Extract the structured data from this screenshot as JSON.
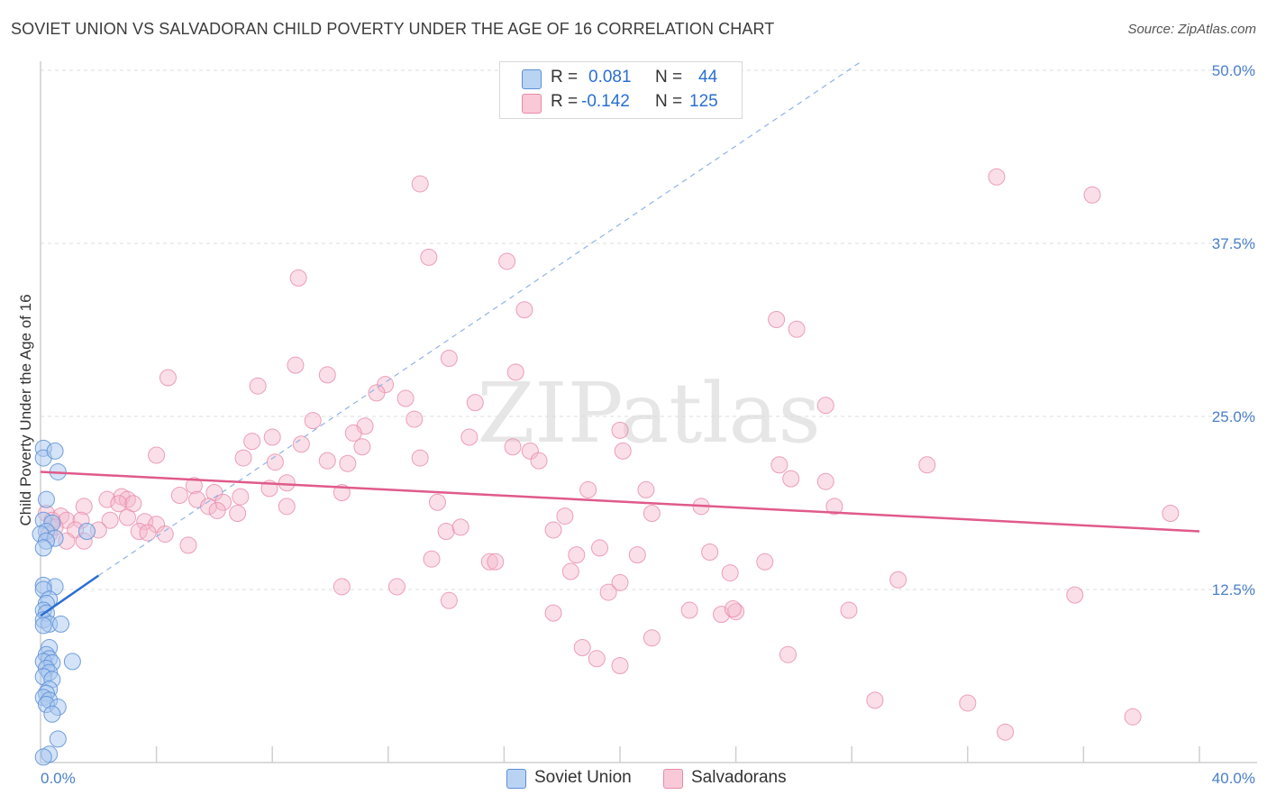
{
  "header": {
    "title": "SOVIET UNION VS SALVADORAN CHILD POVERTY UNDER THE AGE OF 16 CORRELATION CHART",
    "source": "Source: ZipAtlas.com"
  },
  "watermark": "ZIPatlas",
  "legend_top": {
    "rows": [
      {
        "r_label": "R =",
        "r_value": "0.081",
        "n_label": "N =",
        "n_value": "44"
      },
      {
        "r_label": "R =",
        "r_value": "-0.142",
        "n_label": "N =",
        "n_value": "125"
      }
    ]
  },
  "legend_bottom": {
    "items": [
      "Soviet Union",
      "Salvadorans"
    ]
  },
  "colors": {
    "soviet_fill": "#a9c8f0",
    "soviet_stroke": "#5b8fd6",
    "soviet_line": "#2a6fd1",
    "salv_fill": "#f5b8cc",
    "salv_stroke": "#e88aa8",
    "salv_line": "#e05a8a",
    "grid": "#dcdcdc",
    "axis_text": "#4a7fc9"
  },
  "chart_data": {
    "type": "scatter",
    "title": "SOVIET UNION VS SALVADORAN CHILD POVERTY UNDER THE AGE OF 16 CORRELATION CHART",
    "xlabel": "",
    "ylabel": "Child Poverty Under the Age of 16",
    "xlim": [
      0,
      40
    ],
    "ylim": [
      0,
      50
    ],
    "x_tick_labels": [
      "0.0%",
      "40.0%"
    ],
    "y_ticks": [
      12.5,
      25.0,
      37.5,
      50.0
    ],
    "y_tick_labels": [
      "12.5%",
      "25.0%",
      "37.5%",
      "50.0%"
    ],
    "grid": true,
    "legend_position": "top-center",
    "series": [
      {
        "name": "Soviet Union",
        "R": 0.081,
        "N": 44,
        "trend": {
          "x": [
            0.0,
            2.0
          ],
          "y": [
            10.6,
            13.5
          ]
        },
        "trend_extended": {
          "x": [
            2.0,
            28.3
          ],
          "y": [
            13.5,
            50.6
          ]
        },
        "points": [
          [
            0.1,
            22.7
          ],
          [
            0.1,
            22.0
          ],
          [
            0.5,
            22.5
          ],
          [
            0.6,
            21.0
          ],
          [
            0.2,
            19.0
          ],
          [
            0.1,
            17.5
          ],
          [
            0.4,
            17.3
          ],
          [
            0.2,
            16.7
          ],
          [
            0.0,
            16.5
          ],
          [
            0.5,
            16.2
          ],
          [
            0.2,
            16.0
          ],
          [
            0.1,
            15.5
          ],
          [
            1.6,
            16.7
          ],
          [
            0.1,
            12.8
          ],
          [
            0.5,
            12.7
          ],
          [
            0.1,
            12.5
          ],
          [
            0.3,
            11.8
          ],
          [
            0.2,
            11.5
          ],
          [
            0.1,
            11.0
          ],
          [
            0.2,
            10.8
          ],
          [
            0.1,
            10.3
          ],
          [
            0.3,
            10.0
          ],
          [
            0.1,
            9.9
          ],
          [
            0.7,
            10.0
          ],
          [
            0.3,
            8.3
          ],
          [
            0.2,
            7.8
          ],
          [
            0.3,
            7.5
          ],
          [
            0.1,
            7.3
          ],
          [
            0.4,
            7.2
          ],
          [
            1.1,
            7.3
          ],
          [
            0.2,
            6.8
          ],
          [
            0.3,
            6.5
          ],
          [
            0.1,
            6.2
          ],
          [
            0.4,
            6.0
          ],
          [
            0.3,
            5.3
          ],
          [
            0.2,
            5.0
          ],
          [
            0.1,
            4.7
          ],
          [
            0.3,
            4.5
          ],
          [
            0.2,
            4.2
          ],
          [
            0.6,
            4.0
          ],
          [
            0.4,
            3.5
          ],
          [
            0.6,
            1.7
          ],
          [
            0.3,
            0.6
          ],
          [
            0.1,
            0.4
          ]
        ]
      },
      {
        "name": "Salvadorans",
        "R": -0.142,
        "N": 125,
        "trend": {
          "x": [
            0.0,
            40.0
          ],
          "y": [
            21.0,
            16.7
          ]
        },
        "points": [
          [
            13.1,
            41.8
          ],
          [
            33.0,
            42.3
          ],
          [
            36.3,
            41.0
          ],
          [
            13.4,
            36.5
          ],
          [
            16.1,
            36.2
          ],
          [
            8.9,
            35.0
          ],
          [
            16.7,
            32.7
          ],
          [
            25.4,
            32.0
          ],
          [
            26.1,
            31.3
          ],
          [
            14.1,
            29.2
          ],
          [
            8.8,
            28.7
          ],
          [
            16.4,
            28.2
          ],
          [
            9.9,
            28.0
          ],
          [
            4.4,
            27.8
          ],
          [
            7.5,
            27.2
          ],
          [
            11.9,
            27.3
          ],
          [
            11.6,
            26.7
          ],
          [
            12.6,
            26.3
          ],
          [
            15.0,
            26.0
          ],
          [
            27.1,
            25.8
          ],
          [
            9.4,
            24.7
          ],
          [
            12.9,
            24.8
          ],
          [
            11.2,
            24.3
          ],
          [
            20.0,
            24.0
          ],
          [
            10.8,
            23.8
          ],
          [
            8.0,
            23.5
          ],
          [
            9.0,
            23.0
          ],
          [
            14.8,
            23.5
          ],
          [
            7.3,
            23.2
          ],
          [
            11.1,
            22.8
          ],
          [
            16.3,
            22.8
          ],
          [
            16.9,
            22.5
          ],
          [
            20.1,
            22.5
          ],
          [
            4.0,
            22.2
          ],
          [
            7.0,
            22.0
          ],
          [
            9.9,
            21.8
          ],
          [
            8.1,
            21.7
          ],
          [
            10.6,
            21.6
          ],
          [
            13.1,
            22.0
          ],
          [
            17.2,
            21.8
          ],
          [
            30.6,
            21.5
          ],
          [
            25.5,
            21.5
          ],
          [
            25.9,
            20.5
          ],
          [
            27.1,
            20.3
          ],
          [
            8.5,
            20.2
          ],
          [
            5.3,
            20.0
          ],
          [
            7.9,
            19.8
          ],
          [
            6.0,
            19.5
          ],
          [
            10.4,
            19.5
          ],
          [
            18.9,
            19.7
          ],
          [
            20.9,
            19.7
          ],
          [
            4.8,
            19.3
          ],
          [
            5.4,
            19.0
          ],
          [
            6.3,
            18.8
          ],
          [
            6.9,
            19.2
          ],
          [
            2.3,
            19.0
          ],
          [
            2.8,
            19.2
          ],
          [
            3.0,
            19.0
          ],
          [
            13.7,
            18.8
          ],
          [
            8.5,
            18.5
          ],
          [
            1.5,
            18.5
          ],
          [
            2.7,
            18.7
          ],
          [
            3.2,
            18.7
          ],
          [
            5.8,
            18.5
          ],
          [
            6.1,
            18.2
          ],
          [
            6.8,
            18.0
          ],
          [
            21.1,
            18.0
          ],
          [
            22.8,
            18.5
          ],
          [
            27.4,
            18.5
          ],
          [
            39.0,
            18.0
          ],
          [
            18.1,
            17.8
          ],
          [
            0.2,
            18.0
          ],
          [
            0.7,
            17.8
          ],
          [
            0.4,
            17.5
          ],
          [
            0.9,
            17.5
          ],
          [
            1.4,
            17.5
          ],
          [
            2.4,
            17.5
          ],
          [
            3.0,
            17.7
          ],
          [
            3.6,
            17.4
          ],
          [
            4.0,
            17.2
          ],
          [
            0.5,
            17.0
          ],
          [
            1.2,
            16.8
          ],
          [
            2.0,
            16.8
          ],
          [
            0.3,
            16.5
          ],
          [
            3.4,
            16.7
          ],
          [
            3.7,
            16.6
          ],
          [
            4.3,
            16.5
          ],
          [
            14.0,
            16.7
          ],
          [
            14.5,
            17.0
          ],
          [
            17.7,
            16.8
          ],
          [
            0.9,
            16.0
          ],
          [
            1.5,
            16.0
          ],
          [
            5.1,
            15.7
          ],
          [
            19.3,
            15.5
          ],
          [
            20.6,
            15.0
          ],
          [
            23.1,
            15.2
          ],
          [
            18.5,
            15.0
          ],
          [
            13.5,
            14.7
          ],
          [
            15.5,
            14.5
          ],
          [
            15.7,
            14.5
          ],
          [
            25.0,
            14.5
          ],
          [
            18.3,
            13.8
          ],
          [
            23.8,
            13.7
          ],
          [
            20.0,
            13.0
          ],
          [
            29.6,
            13.2
          ],
          [
            10.4,
            12.7
          ],
          [
            12.3,
            12.7
          ],
          [
            19.6,
            12.3
          ],
          [
            35.7,
            12.1
          ],
          [
            14.1,
            11.7
          ],
          [
            17.7,
            10.8
          ],
          [
            22.4,
            11.0
          ],
          [
            23.5,
            10.7
          ],
          [
            24.0,
            10.9
          ],
          [
            23.9,
            11.1
          ],
          [
            27.9,
            11.0
          ],
          [
            21.1,
            9.0
          ],
          [
            18.7,
            8.3
          ],
          [
            25.8,
            7.8
          ],
          [
            19.2,
            7.5
          ],
          [
            20.0,
            7.0
          ],
          [
            28.8,
            4.5
          ],
          [
            32.0,
            4.3
          ],
          [
            37.7,
            3.3
          ],
          [
            33.3,
            2.2
          ]
        ]
      }
    ]
  }
}
